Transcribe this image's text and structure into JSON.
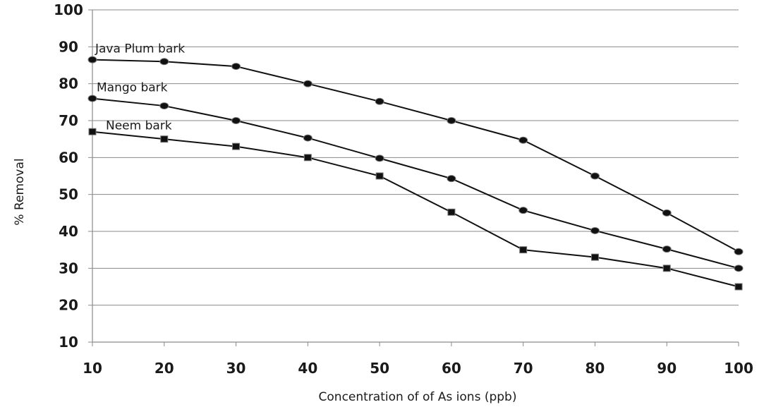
{
  "chart_data": {
    "type": "line",
    "title": "",
    "xlabel": "Concentration of of As ions (ppb)",
    "ylabel": "% Removal",
    "x": [
      10,
      20,
      30,
      40,
      50,
      60,
      70,
      80,
      90,
      100
    ],
    "xlim": [
      10,
      100
    ],
    "ylim": [
      10,
      100
    ],
    "x_ticks": [
      "10",
      "20",
      "30",
      "40",
      "50",
      "60",
      "70",
      "80",
      "90",
      "100"
    ],
    "y_ticks": [
      "10",
      "20",
      "30",
      "40",
      "50",
      "60",
      "70",
      "80",
      "90",
      "100"
    ],
    "grid": "horizontal",
    "legend": "labels next to series start",
    "series": [
      {
        "name": "Java Plum bark",
        "marker": "circle",
        "values": [
          86.5,
          86,
          84.7,
          80,
          75.2,
          70,
          64.7,
          55,
          45,
          34.5
        ]
      },
      {
        "name": "Mango bark",
        "marker": "circle",
        "values": [
          76,
          74,
          70,
          65.3,
          59.8,
          54.3,
          45.7,
          40.2,
          35.2,
          30
        ]
      },
      {
        "name": "Neem bark",
        "marker": "square",
        "values": [
          67,
          65,
          63,
          60,
          55,
          45.2,
          35,
          33,
          30,
          25
        ]
      }
    ]
  }
}
